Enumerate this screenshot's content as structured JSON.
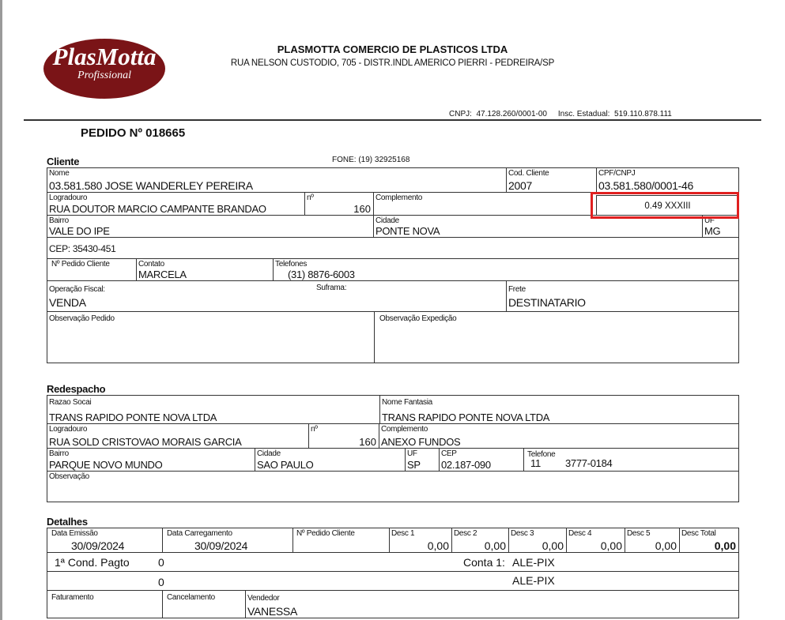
{
  "company": {
    "logo_text": "PlasMotta",
    "logo_subtext": "Profissional",
    "name": "PLASMOTTA COMERCIO DE PLASTICOS LTDA",
    "address": "RUA NELSON CUSTODIO, 705 - DISTR.INDL AMERICO PIERRI - PEDREIRA/SP",
    "cnpj_line": "CNPJ:  47.128.260/0001-00     Insc. Estadual:  519.110.878.111"
  },
  "order_title": "PEDIDO Nº 018665",
  "cliente": {
    "section": "Cliente",
    "fone": "FONE: (19) 32925168",
    "nome_label": "Nome",
    "nome": "03.581.580 JOSE WANDERLEY PEREIRA",
    "cod_label": "Cod. Cliente",
    "cod": "2007",
    "cpf_label": "CPF/CNPJ",
    "cpf": "03.581.580/0001-46",
    "logradouro_label": "Logradouro",
    "logradouro": "RUA DOUTOR MARCIO CAMPANTE BRANDAO",
    "num_label": "nº",
    "num": "160",
    "complemento_label": "Complemento",
    "highlight_value": "0.49 XXXIII",
    "highlight_color": "#e02020",
    "bairro_label": "Bairro",
    "bairro": "VALE DO IPE",
    "cidade_label": "Cidade",
    "cidade": "PONTE NOVA",
    "uf_label": "UF",
    "uf": "MG",
    "cep": "CEP: 35430-451",
    "pedido_cliente_label": "Nº Pedido Cliente",
    "contato_label": "Contato",
    "contato": "MARCELA",
    "telefones_label": "Telefones",
    "telefones": "(31) 8876-6003",
    "operacao_label": "Operação Fiscal:",
    "operacao": "VENDA",
    "suframa_label": "Suframa:",
    "frete_label": "Frete",
    "frete": "DESTINATARIO",
    "obs_pedido_label": "Observação Pedido",
    "obs_expedicao_label": "Observação Expedição"
  },
  "redespacho": {
    "section": "Redespacho",
    "razao_label": "Razao Socai",
    "razao": "TRANS RAPIDO PONTE NOVA LTDA",
    "fantasia_label": "Nome Fantasia",
    "fantasia": "TRANS RAPIDO PONTE NOVA LTDA",
    "logradouro_label": "Logradouro",
    "logradouro": "RUA SOLD CRISTOVAO MORAIS GARCIA",
    "num_label": "nº",
    "num": "160",
    "complemento_label": "Complemento",
    "complemento": "ANEXO FUNDOS",
    "bairro_label": "Bairro",
    "bairro": "PARQUE NOVO MUNDO",
    "cidade_label": "Cidade",
    "cidade": "SAO PAULO",
    "uf_label": "UF",
    "uf": "SP",
    "cep_label": "CEP",
    "cep": "02.187-090",
    "telefone_label": "Telefone",
    "telefone_ddd": "11",
    "telefone": "3777-0184",
    "obs_label": "Observação"
  },
  "detalhes": {
    "section": "Detalhes",
    "emissao_label": "Data Emissão",
    "emissao": "30/09/2024",
    "carregamento_label": "Data Carregamento",
    "carregamento": "30/09/2024",
    "pedido_cliente_label": "Nº Pedido Cliente",
    "descs": [
      {
        "label": "Desc 1",
        "value": "0,00"
      },
      {
        "label": "Desc 2",
        "value": "0,00"
      },
      {
        "label": "Desc 3",
        "value": "0,00"
      },
      {
        "label": "Desc 4",
        "value": "0,00"
      },
      {
        "label": "Desc 5",
        "value": "0,00"
      },
      {
        "label": "Desc Total",
        "value": "0,00"
      }
    ],
    "cond_label": "1ª Cond. Pagto",
    "cond_value": "0",
    "conta_label": "Conta 1:",
    "conta_value": "ALE-PIX",
    "cond2_value": "0",
    "conta2_value": "ALE-PIX",
    "faturamento_label": "Faturamento",
    "cancelamento_label": "Cancelamento",
    "vendedor_label": "Vendedor",
    "vendedor": "VANESSA"
  }
}
